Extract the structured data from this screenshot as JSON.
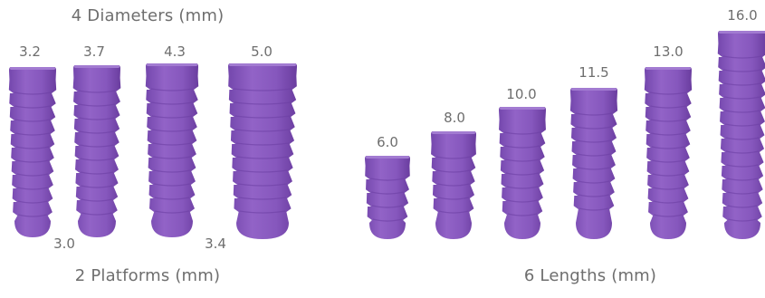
{
  "left_group": {
    "title": "4 Diameters (mm)",
    "subtitle": "2 Platforms (mm)",
    "diameters": [
      "3.2",
      "3.7",
      "4.3",
      "5.0"
    ],
    "platforms": [
      "3.0",
      "3.4"
    ]
  },
  "right_group": {
    "title": "6 Lengths (mm)",
    "lengths": [
      "6.0",
      "8.0",
      "10.0",
      "11.5",
      "13.0",
      "16.0"
    ]
  },
  "colors": {
    "implant": "#8a5cc0",
    "implant_shade": "#6c3fa4",
    "text": "#6e6e6e"
  }
}
